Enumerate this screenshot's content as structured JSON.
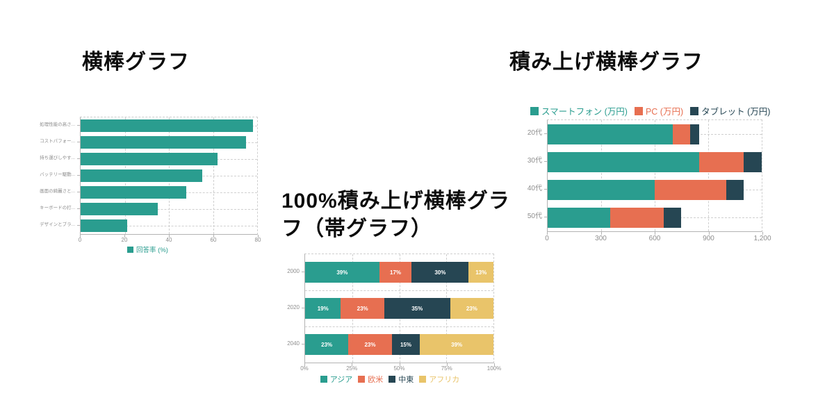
{
  "colors": {
    "teal": "#2A9D8F",
    "orange": "#E76F51",
    "navy": "#264653",
    "yellow": "#E9C46A",
    "axis_text": "#8e8e8e",
    "grid": "#cfcfcf",
    "axis_line": "#b3b3b3",
    "background": "#ffffff",
    "title": "#0c0c0c"
  },
  "chart_data": [
    {
      "type": "bar",
      "orientation": "horizontal",
      "title": "横棒グラフ",
      "categories": [
        "処理性能の高さ...",
        "コストパフォー...",
        "持ち運びしやす...",
        "バッテリー駆動...",
        "画面の綺麗さと...",
        "キーボードの打...",
        "デザインとブラ..."
      ],
      "series": [
        {
          "name": "回答率 (%)",
          "color": "#2A9D8F",
          "values": [
            78,
            75,
            62,
            55,
            48,
            35,
            21
          ]
        }
      ],
      "xlim": [
        0,
        80
      ],
      "xtick_labels": [
        "0",
        "20",
        "40",
        "60",
        "80"
      ],
      "legend_position": "bottom",
      "grid": true
    },
    {
      "type": "bar",
      "subtype": "stacked",
      "orientation": "horizontal",
      "title": "積み上げ横棒グラフ",
      "categories": [
        "20代",
        "30代",
        "40代",
        "50代"
      ],
      "series": [
        {
          "name": "スマートフォン (万円)",
          "color": "#2A9D8F",
          "values": [
            700,
            850,
            600,
            350
          ]
        },
        {
          "name": "PC (万円)",
          "color": "#E76F51",
          "values": [
            100,
            250,
            400,
            300
          ]
        },
        {
          "name": "タブレット (万円)",
          "color": "#264653",
          "values": [
            50,
            100,
            100,
            100
          ]
        }
      ],
      "xlim": [
        0,
        1200
      ],
      "xtick_labels": [
        "0",
        "300",
        "600",
        "900",
        "1,200"
      ],
      "legend_position": "top",
      "grid": true
    },
    {
      "type": "bar",
      "subtype": "percent-stacked",
      "orientation": "horizontal",
      "title": "100%積み上げ横棒グラフ（帯グラフ）",
      "categories": [
        "2000",
        "2020",
        "2040"
      ],
      "series": [
        {
          "name": "アジア",
          "color": "#2A9D8F",
          "values": [
            39,
            19,
            23
          ]
        },
        {
          "name": "欧米",
          "color": "#E76F51",
          "values": [
            17,
            23,
            23
          ]
        },
        {
          "name": "中東",
          "color": "#264653",
          "values": [
            30,
            35,
            15
          ]
        },
        {
          "name": "アフリカ",
          "color": "#E9C46A",
          "values": [
            13,
            23,
            39
          ]
        }
      ],
      "segment_labels": [
        [
          "39%",
          "17%",
          "30%",
          "13%"
        ],
        [
          "19%",
          "23%",
          "35%",
          "23%"
        ],
        [
          "23%",
          "23%",
          "15%",
          "39%"
        ]
      ],
      "xtick_labels": [
        "0%",
        "25%",
        "50%",
        "75%",
        "100%"
      ],
      "legend_position": "bottom",
      "grid": true
    }
  ]
}
